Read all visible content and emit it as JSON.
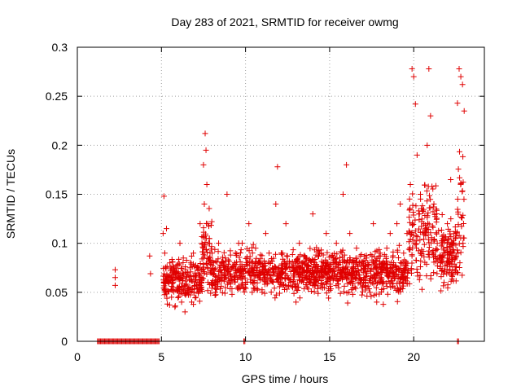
{
  "chart_data": {
    "type": "scatter",
    "title": "Day 283 of 2021, SRMTID for receiver owmg",
    "xlabel": "GPS time / hours",
    "ylabel": "SRMTID / TECUs",
    "xlim": [
      0,
      24.2
    ],
    "ylim": [
      0,
      0.3
    ],
    "xticks": [
      0,
      5,
      10,
      15,
      20
    ],
    "yticks": [
      0,
      0.05,
      0.1,
      0.15,
      0.2,
      0.25,
      0.3
    ],
    "xtick_labels": [
      "0",
      "5",
      "10",
      "15",
      "20"
    ],
    "ytick_labels": [
      "0",
      "0.05",
      "0.1",
      "0.15",
      "0.2",
      "0.25",
      "0.3"
    ],
    "grid": true,
    "marker": "+",
    "color": "#e00000",
    "zero_runs": [
      [
        1.2,
        4.9
      ],
      [
        9.9,
        10.0
      ],
      [
        22.6,
        22.7
      ]
    ],
    "series": [
      {
        "name": "SRMTID",
        "x": [
          2.25,
          2.25,
          2.25,
          4.3,
          4.35,
          5.1,
          5.15,
          5.2,
          5.25,
          5.3,
          5.35,
          5.4,
          5.5,
          5.6,
          5.7,
          5.8,
          5.9,
          6.0,
          6.1,
          6.2,
          6.3,
          6.4,
          6.5,
          6.6,
          6.7,
          6.8,
          6.9,
          7.0,
          7.1,
          7.2,
          7.3,
          7.4,
          7.5,
          7.55,
          7.6,
          7.65,
          7.7,
          7.75,
          7.8,
          7.85,
          7.9,
          8.0,
          8.1,
          8.2,
          8.4,
          8.6,
          8.8,
          8.9,
          9.0,
          9.2,
          9.4,
          9.6,
          9.8,
          10.0,
          10.2,
          10.4,
          10.6,
          10.8,
          11.0,
          11.2,
          11.4,
          11.6,
          11.8,
          11.9,
          12.0,
          12.2,
          12.4,
          12.6,
          12.8,
          13.0,
          13.2,
          13.4,
          13.6,
          13.8,
          14.0,
          14.2,
          14.4,
          14.6,
          14.8,
          15.0,
          15.2,
          15.4,
          15.6,
          15.8,
          16.0,
          16.2,
          16.4,
          16.6,
          16.8,
          17.0,
          17.2,
          17.4,
          17.6,
          17.8,
          18.0,
          18.2,
          18.4,
          18.6,
          18.8,
          19.0,
          19.2,
          19.4,
          19.6,
          19.8,
          19.9,
          20.0,
          20.1,
          20.2,
          20.4,
          20.6,
          20.8,
          20.9,
          21.0,
          21.2,
          21.4,
          21.6,
          21.8,
          22.0,
          22.2,
          22.4,
          22.6,
          22.7,
          22.8,
          22.9,
          23.0
        ],
        "y": [
          0.073,
          0.065,
          0.057,
          0.087,
          0.069,
          0.11,
          0.148,
          0.09,
          0.05,
          0.115,
          0.038,
          0.065,
          0.08,
          0.045,
          0.06,
          0.035,
          0.07,
          0.055,
          0.1,
          0.04,
          0.085,
          0.03,
          0.065,
          0.05,
          0.075,
          0.04,
          0.09,
          0.06,
          0.075,
          0.05,
          0.12,
          0.065,
          0.18,
          0.14,
          0.212,
          0.195,
          0.16,
          0.12,
          0.1,
          0.085,
          0.07,
          0.06,
          0.08,
          0.05,
          0.1,
          0.07,
          0.085,
          0.15,
          0.06,
          0.075,
          0.09,
          0.055,
          0.1,
          0.06,
          0.12,
          0.08,
          0.095,
          0.065,
          0.07,
          0.11,
          0.09,
          0.075,
          0.14,
          0.178,
          0.06,
          0.09,
          0.12,
          0.075,
          0.055,
          0.04,
          0.1,
          0.065,
          0.085,
          0.07,
          0.13,
          0.06,
          0.09,
          0.075,
          0.11,
          0.065,
          0.085,
          0.1,
          0.07,
          0.15,
          0.18,
          0.11,
          0.08,
          0.095,
          0.06,
          0.07,
          0.085,
          0.05,
          0.12,
          0.04,
          0.06,
          0.08,
          0.095,
          0.11,
          0.07,
          0.12,
          0.14,
          0.09,
          0.11,
          0.16,
          0.278,
          0.27,
          0.242,
          0.19,
          0.15,
          0.12,
          0.2,
          0.278,
          0.23,
          0.14,
          0.1,
          0.08,
          0.06,
          0.12,
          0.165,
          0.09,
          0.243,
          0.278,
          0.27,
          0.262,
          0.235
        ]
      }
    ]
  }
}
